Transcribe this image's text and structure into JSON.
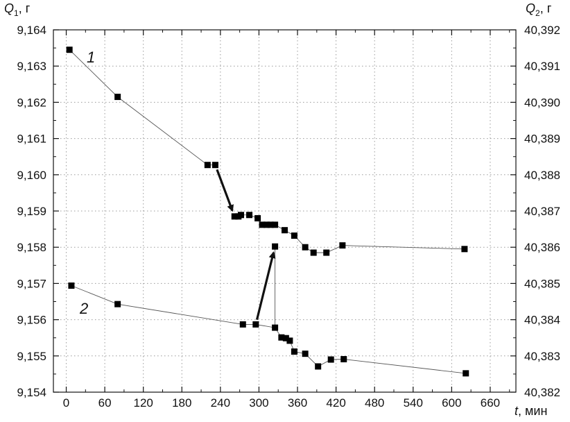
{
  "chart_data": {
    "type": "scatter",
    "title": "",
    "x_axis": {
      "label_symbol": "t",
      "label_unit": ", мин",
      "range": [
        -20,
        700
      ],
      "ticks": [
        0,
        60,
        120,
        180,
        240,
        300,
        360,
        420,
        480,
        540,
        600,
        660
      ],
      "tick_labels": [
        "0",
        "60",
        "120",
        "180",
        "240",
        "300",
        "360",
        "420",
        "480",
        "540",
        "600",
        "660"
      ]
    },
    "y_axis_left": {
      "label_symbol": "Q",
      "label_subscript": "1",
      "label_unit": ", г",
      "range": [
        9.154,
        9.164
      ],
      "ticks": [
        9.154,
        9.155,
        9.156,
        9.157,
        9.158,
        9.159,
        9.16,
        9.161,
        9.162,
        9.163,
        9.164
      ],
      "tick_labels": [
        "9,154",
        "9,155",
        "9,156",
        "9,157",
        "9,158",
        "9,159",
        "9,160",
        "9,161",
        "9,162",
        "9,163",
        "9,164"
      ]
    },
    "y_axis_right": {
      "label_symbol": "Q",
      "label_subscript": "2",
      "label_unit": ", г",
      "range": [
        40.382,
        40.392
      ],
      "ticks": [
        40.382,
        40.383,
        40.384,
        40.385,
        40.386,
        40.387,
        40.388,
        40.389,
        40.39,
        40.391,
        40.392
      ],
      "tick_labels": [
        "40,382",
        "40,383",
        "40,384",
        "40,385",
        "40,386",
        "40,387",
        "40,388",
        "40,389",
        "40,390",
        "40,391",
        "40,392"
      ]
    },
    "grid": "dotted",
    "series": [
      {
        "name": "1",
        "axis": "left",
        "points": [
          [
            5,
            9.16345
          ],
          [
            80,
            9.16215
          ],
          [
            220,
            9.16027
          ],
          [
            232,
            9.16027
          ],
          [
            262,
            9.15885
          ],
          [
            268,
            9.15885
          ],
          [
            272,
            9.15889
          ],
          [
            285,
            9.15889
          ],
          [
            298,
            9.1588
          ],
          [
            305,
            9.15862
          ],
          [
            312,
            9.15862
          ],
          [
            318,
            9.15862
          ],
          [
            325,
            9.15862
          ],
          [
            340,
            9.15847
          ],
          [
            355,
            9.15832
          ],
          [
            372,
            9.158
          ],
          [
            385,
            9.15785
          ],
          [
            405,
            9.15785
          ],
          [
            430,
            9.15805
          ],
          [
            620,
            9.15795
          ]
        ],
        "arrow": {
          "from": [
            232,
            9.16027
          ],
          "to": [
            262,
            9.15885
          ]
        }
      },
      {
        "name": "2",
        "axis": "right",
        "points": [
          [
            8,
            40.38494
          ],
          [
            80,
            40.38443
          ],
          [
            275,
            40.38387
          ],
          [
            295,
            40.38387
          ],
          [
            325,
            40.38378
          ],
          [
            335,
            40.38351
          ],
          [
            342,
            40.38349
          ],
          [
            348,
            40.38342
          ],
          [
            355,
            40.38312
          ],
          [
            372,
            40.38306
          ],
          [
            392,
            40.38271
          ],
          [
            412,
            40.3829
          ],
          [
            432,
            40.38291
          ],
          [
            622,
            40.38252
          ]
        ],
        "arrow": {
          "from": [
            295,
            40.38387
          ],
          "to": [
            325,
            40.38602
          ]
        },
        "jump_point": [
          325,
          40.38602
        ]
      }
    ]
  }
}
